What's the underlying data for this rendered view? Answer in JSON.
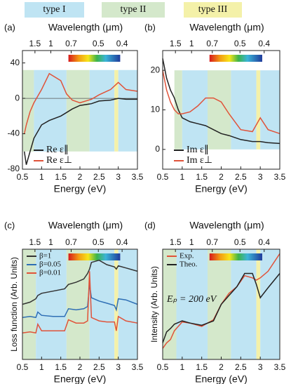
{
  "band_legend": [
    {
      "label": "type I",
      "color": "#bfe4f3"
    },
    {
      "label": "type II",
      "color": "#d4e8cb"
    },
    {
      "label": "type III",
      "color": "#f4f1a9"
    }
  ],
  "chart_data": [
    {
      "type": "line",
      "panel": "(a)",
      "x2_label": "Wavelength (μm)",
      "x_label": "Energy (eV)",
      "xlim": [
        0.5,
        3.5
      ],
      "xticks": [
        0.5,
        1,
        1.5,
        2,
        2.5,
        3,
        3.5
      ],
      "x2ticks": [
        1.5,
        1,
        0.7,
        0.5,
        0.4
      ],
      "ylim": [
        -80,
        54
      ],
      "yticks": [
        -80,
        -40,
        0,
        40
      ],
      "reference_line": 0,
      "legend": "lower left",
      "bands": [
        {
          "color": "#d4e8cb",
          "x": [
            0.5,
            0.8
          ]
        },
        {
          "color": "#bfe4f3",
          "x": [
            0.8,
            1.65
          ]
        },
        {
          "color": "#d4e8cb",
          "x": [
            1.65,
            2.25
          ]
        },
        {
          "color": "#bfe4f3",
          "x": [
            2.25,
            2.9
          ]
        },
        {
          "color": "#f4f1a9",
          "x": [
            2.9,
            3.0
          ]
        },
        {
          "color": "#bfe4f3",
          "x": [
            3.0,
            3.5
          ]
        }
      ],
      "band_ylim": [
        -60,
        32
      ],
      "x": [
        0.55,
        0.6,
        0.7,
        0.8,
        1.0,
        1.2,
        1.5,
        1.65,
        1.8,
        2.0,
        2.3,
        2.5,
        2.8,
        3.0,
        3.2,
        3.5
      ],
      "series": [
        {
          "name": "Re ε∥",
          "color": "#222222",
          "values": [
            -60,
            -75,
            -60,
            -45,
            -30,
            -25,
            -20,
            -16,
            -12,
            -8,
            -6,
            -3,
            -2,
            0,
            -1,
            -1
          ]
        },
        {
          "name": "Re ε⊥",
          "color": "#e0533a",
          "values": [
            -40,
            -30,
            -15,
            -5,
            10,
            28,
            20,
            5,
            -2,
            -5,
            -1,
            4,
            10,
            18,
            10,
            8
          ]
        }
      ]
    },
    {
      "type": "line",
      "panel": "(b)",
      "x2_label": "Wavelength (μm)",
      "x_label": "Energy (eV)",
      "xlim": [
        0.5,
        3.5
      ],
      "xticks": [
        0.5,
        1,
        1.5,
        2,
        2.5,
        3,
        3.5
      ],
      "x2ticks": [
        1.5,
        1,
        0.7,
        0.5,
        0.4
      ],
      "ylim": [
        -5,
        25
      ],
      "yticks": [
        0,
        10,
        20
      ],
      "legend": "lower left",
      "bands": [
        {
          "color": "#d4e8cb",
          "x": [
            0.8,
            1.0
          ]
        },
        {
          "color": "#bfe4f3",
          "x": [
            1.0,
            1.65
          ]
        },
        {
          "color": "#d4e8cb",
          "x": [
            1.65,
            2.25
          ]
        },
        {
          "color": "#bfe4f3",
          "x": [
            2.25,
            2.9
          ]
        },
        {
          "color": "#f4f1a9",
          "x": [
            2.9,
            3.0
          ]
        },
        {
          "color": "#bfe4f3",
          "x": [
            3.0,
            3.5
          ]
        }
      ],
      "band_ylim": [
        0,
        20
      ],
      "x": [
        0.5,
        0.6,
        0.7,
        0.8,
        0.9,
        1.0,
        1.2,
        1.4,
        1.6,
        1.8,
        2.0,
        2.2,
        2.5,
        2.8,
        3.0,
        3.2,
        3.5
      ],
      "series": [
        {
          "name": "Im ε∥",
          "color": "#222222",
          "values": [
            23,
            18,
            15,
            13,
            10,
            8,
            7,
            6.5,
            6,
            5,
            4,
            3.5,
            2.5,
            2,
            2,
            1.7,
            1.5
          ]
        },
        {
          "name": "Im ε⊥",
          "color": "#e0533a",
          "values": [
            20,
            15,
            12,
            10,
            9,
            9,
            9.5,
            11,
            13,
            13,
            12,
            9,
            5,
            4.5,
            8,
            5,
            4
          ]
        }
      ]
    },
    {
      "type": "line",
      "panel": "(c)",
      "x2_label": "Wavelength (μm)",
      "x_label": "Energy (eV)",
      "y_label": "Loss function (Arb. Units)",
      "xlim": [
        0.5,
        3.5
      ],
      "xticks": [
        0.5,
        1,
        1.5,
        2,
        2.5,
        3,
        3.5
      ],
      "x2ticks": [
        1.5,
        1,
        0.7,
        0.5,
        0.4
      ],
      "ylim": [
        0,
        10
      ],
      "legend": "upper left",
      "bands": [
        {
          "color": "#d4e8cb",
          "x": [
            0.5,
            0.85
          ]
        },
        {
          "color": "#bfe4f3",
          "x": [
            0.85,
            1.65
          ]
        },
        {
          "color": "#d4e8cb",
          "x": [
            1.65,
            2.25
          ]
        },
        {
          "color": "#bfe4f3",
          "x": [
            2.25,
            2.9
          ]
        },
        {
          "color": "#f4f1a9",
          "x": [
            2.9,
            3.0
          ]
        },
        {
          "color": "#bfe4f3",
          "x": [
            3.0,
            3.5
          ]
        }
      ],
      "x": [
        0.5,
        0.7,
        0.85,
        0.9,
        1.0,
        1.3,
        1.6,
        1.7,
        1.9,
        2.1,
        2.2,
        2.25,
        2.3,
        2.5,
        2.7,
        2.9,
        2.95,
        3.0,
        3.2,
        3.5
      ],
      "series": [
        {
          "name": "β=1",
          "color": "#333333",
          "values": [
            5.0,
            5.2,
            5.5,
            5.8,
            6.0,
            6.2,
            6.4,
            6.8,
            7.0,
            7.3,
            7.8,
            8.2,
            8.8,
            9.0,
            8.6,
            8.4,
            8.2,
            8.5,
            8.3,
            8.0
          ]
        },
        {
          "name": "β=0.05",
          "color": "#2f6fb5",
          "values": [
            3.8,
            3.9,
            3.8,
            4.3,
            4.0,
            3.9,
            3.9,
            4.6,
            4.5,
            4.6,
            4.8,
            6.8,
            5.6,
            5.3,
            5.1,
            4.9,
            4.5,
            5.5,
            5.4,
            5.0
          ]
        },
        {
          "name": "β=0.01",
          "color": "#e0533a",
          "values": [
            2.4,
            2.5,
            2.4,
            3.2,
            2.6,
            2.6,
            2.6,
            3.6,
            3.3,
            3.3,
            3.5,
            8.0,
            3.8,
            3.5,
            3.4,
            3.4,
            2.6,
            3.9,
            3.5,
            3.3
          ]
        }
      ]
    },
    {
      "type": "line",
      "panel": "(d)",
      "x2_label": "Wavelength (μm)",
      "x_label": "Energy (eV)",
      "y_label": "Intensity (Arb. Units)",
      "xlim": [
        0.5,
        3.5
      ],
      "xticks": [
        0.5,
        1,
        1.5,
        2,
        2.5,
        3,
        3.5
      ],
      "x2ticks": [
        1.5,
        1,
        0.7,
        0.5,
        0.4
      ],
      "ylim": [
        0,
        10
      ],
      "legend": "upper left",
      "annotation": "Eₚ = 200 eV",
      "bands": [
        {
          "color": "#d4e8cb",
          "x": [
            0.5,
            0.85
          ]
        },
        {
          "color": "#bfe4f3",
          "x": [
            0.85,
            1.65
          ]
        },
        {
          "color": "#d4e8cb",
          "x": [
            1.65,
            2.25
          ]
        },
        {
          "color": "#bfe4f3",
          "x": [
            2.25,
            2.9
          ]
        },
        {
          "color": "#f4f1a9",
          "x": [
            2.9,
            3.0
          ]
        },
        {
          "color": "#bfe4f3",
          "x": [
            3.0,
            3.5
          ]
        }
      ],
      "x": [
        0.5,
        0.6,
        0.7,
        0.8,
        1.0,
        1.2,
        1.5,
        1.8,
        2.0,
        2.2,
        2.4,
        2.6,
        2.8,
        2.9,
        3.0,
        3.2,
        3.5
      ],
      "series": [
        {
          "name": "Exp.",
          "color": "#e0533a",
          "values": [
            1.0,
            1.5,
            1.8,
            2.6,
            3.4,
            3.3,
            3.0,
            3.6,
            5.0,
            6.0,
            6.6,
            7.6,
            7.4,
            7.2,
            7.4,
            8.0,
            9.6
          ]
        },
        {
          "name": "Theo.",
          "color": "#222222",
          "values": [
            1.5,
            2.5,
            2.8,
            3.2,
            3.5,
            3.3,
            3.1,
            3.5,
            5.0,
            5.8,
            6.6,
            7.8,
            7.8,
            6.8,
            5.6,
            6.5,
            7.8
          ]
        }
      ]
    }
  ]
}
